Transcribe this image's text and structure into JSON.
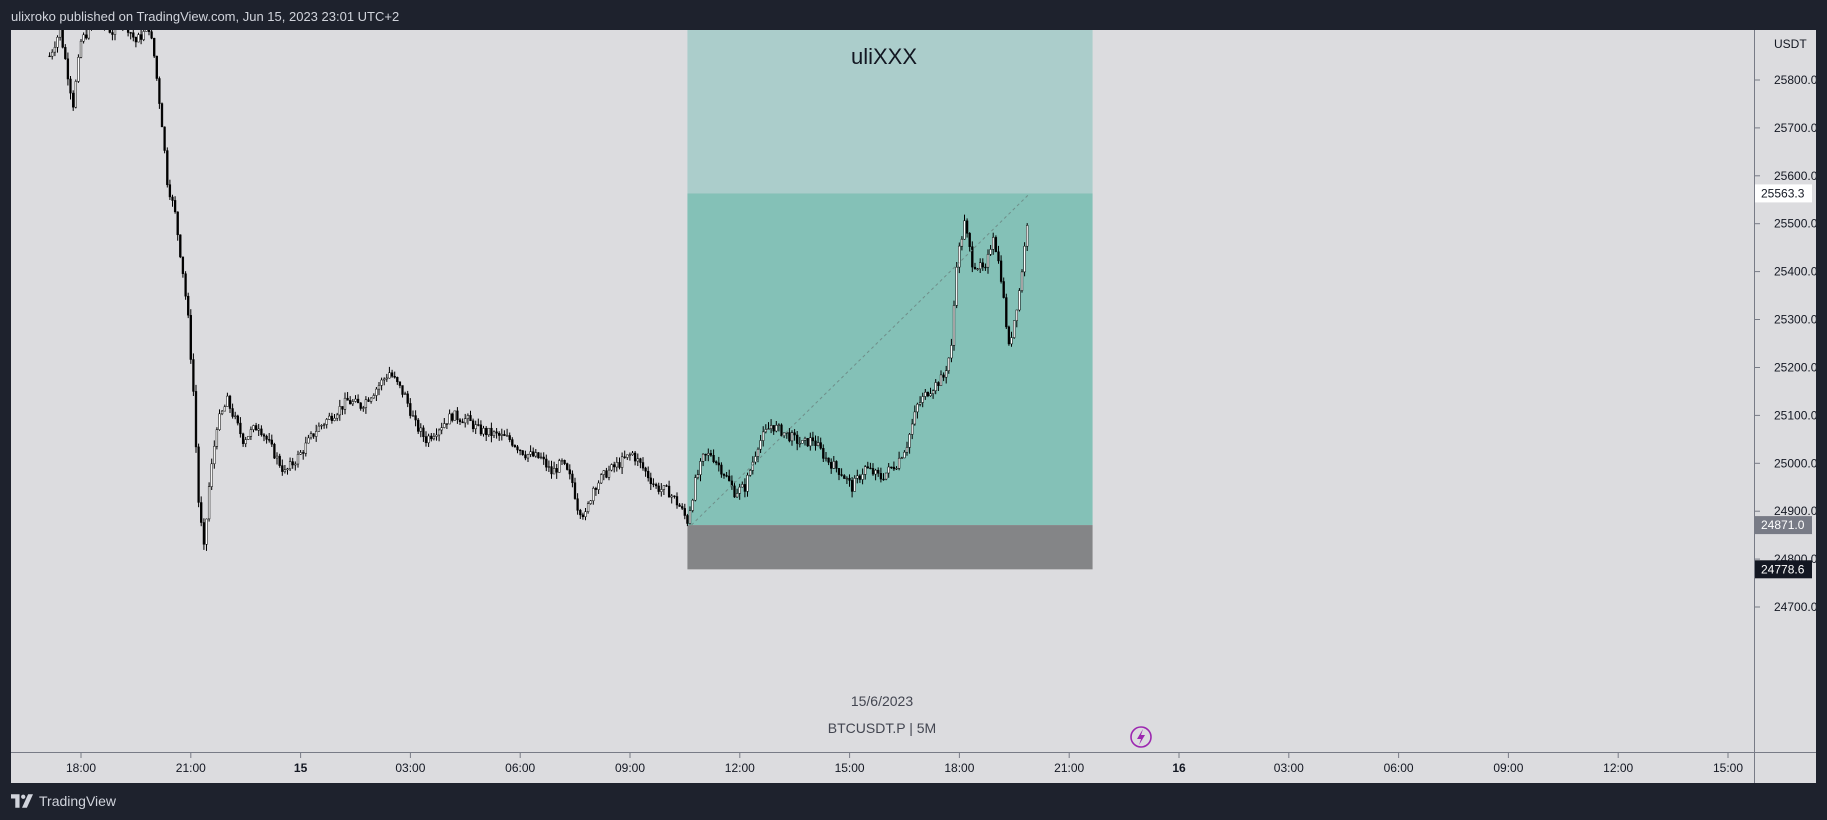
{
  "header": {
    "published_text": "ulixroko published on TradingView.com, Jun 15, 2023 23:01 UTC+2"
  },
  "footer": {
    "brand": "TradingView"
  },
  "chart_data": {
    "type": "candlestick",
    "symbol": "BTCUSDT.P | 5M",
    "date_label": "15/6/2023",
    "annotation_text": "uliXXX",
    "currency": "USDT",
    "y_ticks": [
      "25800.0",
      "25700.0",
      "25600.0",
      "25500.0",
      "25400.0",
      "25300.0",
      "25200.0",
      "25100.0",
      "25000.0",
      "24900.0",
      "24800.0",
      "24700.0"
    ],
    "x_ticks": [
      "18:00",
      "21:00",
      "15",
      "03:00",
      "06:00",
      "09:00",
      "12:00",
      "15:00",
      "18:00",
      "21:00",
      "16",
      "03:00",
      "06:00",
      "09:00",
      "12:00",
      "15:00"
    ],
    "bold_x_ticks": [
      "15",
      "16"
    ],
    "price_badges": [
      {
        "value": "25563.3",
        "style": "light"
      },
      {
        "value": "24871.0",
        "style": "gray"
      },
      {
        "value": "24778.6",
        "style": "dark"
      }
    ],
    "position": {
      "entry": 24871.0,
      "stop": 24778.6,
      "target": 25563.3,
      "start_time": "13:20",
      "end_time": "02:15",
      "target_zone_color": "#84c1b7",
      "target_zone_upper_color": "#abcdcb",
      "stop_zone_color": "#848587"
    },
    "candles_path": [
      {
        "t": "17:00",
        "p": 25850
      },
      {
        "t": "17:20",
        "p": 25905
      },
      {
        "t": "17:45",
        "p": 25750
      },
      {
        "t": "18:00",
        "p": 25880
      },
      {
        "t": "18:30",
        "p": 25930
      },
      {
        "t": "19:00",
        "p": 25900
      },
      {
        "t": "19:20",
        "p": 25930
      },
      {
        "t": "19:45",
        "p": 25880
      },
      {
        "t": "20:10",
        "p": 25910
      },
      {
        "t": "20:20",
        "p": 25850
      },
      {
        "t": "20:35",
        "p": 25710
      },
      {
        "t": "20:45",
        "p": 25590
      },
      {
        "t": "21:00",
        "p": 25520
      },
      {
        "t": "21:15",
        "p": 25400
      },
      {
        "t": "21:25",
        "p": 25300
      },
      {
        "t": "21:35",
        "p": 25150
      },
      {
        "t": "21:45",
        "p": 24920
      },
      {
        "t": "21:55",
        "p": 24820
      },
      {
        "t": "22:05",
        "p": 24950
      },
      {
        "t": "22:20",
        "p": 25080
      },
      {
        "t": "22:40",
        "p": 25130
      },
      {
        "t": "23:10",
        "p": 25050
      },
      {
        "t": "23:40",
        "p": 25080
      },
      {
        "t": "00:05",
        "p": 25030
      },
      {
        "t": "00:30",
        "p": 24980
      },
      {
        "t": "01:00",
        "p": 25020
      },
      {
        "t": "01:30",
        "p": 25070
      },
      {
        "t": "02:00",
        "p": 25100
      },
      {
        "t": "02:30",
        "p": 25130
      },
      {
        "t": "02:55",
        "p": 25120
      },
      {
        "t": "03:20",
        "p": 25150
      },
      {
        "t": "03:50",
        "p": 25190
      },
      {
        "t": "04:20",
        "p": 25140
      },
      {
        "t": "04:40",
        "p": 25080
      },
      {
        "t": "05:00",
        "p": 25050
      },
      {
        "t": "05:20",
        "p": 25070
      },
      {
        "t": "05:50",
        "p": 25100
      },
      {
        "t": "06:20",
        "p": 25090
      },
      {
        "t": "06:40",
        "p": 25070
      },
      {
        "t": "07:10",
        "p": 25060
      },
      {
        "t": "07:40",
        "p": 25050
      },
      {
        "t": "08:10",
        "p": 25020
      },
      {
        "t": "08:40",
        "p": 25010
      },
      {
        "t": "09:00",
        "p": 24980
      },
      {
        "t": "09:20",
        "p": 25000
      },
      {
        "t": "09:40",
        "p": 24960
      },
      {
        "t": "09:50",
        "p": 24910
      },
      {
        "t": "10:05",
        "p": 24890
      },
      {
        "t": "10:20",
        "p": 24950
      },
      {
        "t": "10:45",
        "p": 24980
      },
      {
        "t": "11:10",
        "p": 25000
      },
      {
        "t": "11:35",
        "p": 25020
      },
      {
        "t": "11:55",
        "p": 24990
      },
      {
        "t": "12:20",
        "p": 24950
      },
      {
        "t": "12:45",
        "p": 24940
      },
      {
        "t": "13:05",
        "p": 24910
      },
      {
        "t": "13:20",
        "p": 24880
      },
      {
        "t": "13:35",
        "p": 24960
      },
      {
        "t": "13:50",
        "p": 25010
      },
      {
        "t": "14:05",
        "p": 25020
      },
      {
        "t": "14:30",
        "p": 24980
      },
      {
        "t": "14:50",
        "p": 24940
      },
      {
        "t": "15:10",
        "p": 24950
      },
      {
        "t": "15:35",
        "p": 25040
      },
      {
        "t": "16:00",
        "p": 25080
      },
      {
        "t": "16:30",
        "p": 25060
      },
      {
        "t": "17:00",
        "p": 25040
      },
      {
        "t": "17:20",
        "p": 25050
      },
      {
        "t": "17:45",
        "p": 25010
      },
      {
        "t": "18:15",
        "p": 24980
      },
      {
        "t": "18:35",
        "p": 24950
      },
      {
        "t": "19:00",
        "p": 24990
      },
      {
        "t": "19:30",
        "p": 24970
      },
      {
        "t": "20:00",
        "p": 25000
      },
      {
        "t": "20:20",
        "p": 25040
      },
      {
        "t": "20:40",
        "p": 25120
      },
      {
        "t": "21:00",
        "p": 25150
      },
      {
        "t": "21:30",
        "p": 25180
      },
      {
        "t": "21:45",
        "p": 25240
      },
      {
        "t": "21:55",
        "p": 25420
      },
      {
        "t": "22:10",
        "p": 25500
      },
      {
        "t": "22:25",
        "p": 25420
      },
      {
        "t": "22:50",
        "p": 25400
      },
      {
        "t": "23:05",
        "p": 25480
      },
      {
        "t": "23:20",
        "p": 25390
      },
      {
        "t": "23:35",
        "p": 25240
      },
      {
        "t": "23:45",
        "p": 25300
      },
      {
        "t": "23:55",
        "p": 25360
      },
      {
        "t": "00:05",
        "p": 25450
      },
      {
        "t": "00:15",
        "p": 25560
      }
    ]
  }
}
